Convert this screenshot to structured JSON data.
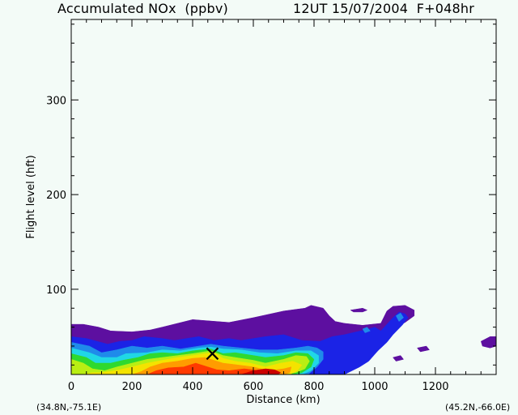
{
  "header": {
    "title_left": "Accumulated NOx  (ppbv)",
    "title_right": "12UT 15/07/2004  F+048hr"
  },
  "footer": {
    "start_coord": "(34.8N,-75.1E)",
    "end_coord": "(45.2N,-66.0E)"
  },
  "colors": {
    "background": "#f3fbf7",
    "levels": [
      "#5d0fa0",
      "#1b23e6",
      "#1f8bea",
      "#20d7e6",
      "#2fd92f",
      "#b9ee13",
      "#f4e300",
      "#ff9c00",
      "#ff3a00",
      "#cc0000"
    ]
  },
  "chart_data": {
    "type": "contour",
    "title": "Accumulated NOx  (ppbv)",
    "xlabel": "Distance  (km)",
    "ylabel": "Flight level  (hft)",
    "xlim": [
      0,
      1400
    ],
    "ylim": [
      10,
      385
    ],
    "xticks": [
      0,
      200,
      400,
      600,
      800,
      1000,
      1200
    ],
    "yticks": [
      100,
      200,
      300
    ],
    "marker": {
      "symbol": "x",
      "x": 465,
      "y": 32
    },
    "contour_levels": [
      {
        "level": 1,
        "polygons": [
          [
            [
              0,
              63
            ],
            [
              40,
              63
            ],
            [
              90,
              60
            ],
            [
              130,
              56
            ],
            [
              200,
              55
            ],
            [
              260,
              57
            ],
            [
              300,
              60
            ],
            [
              400,
              68
            ],
            [
              520,
              65
            ],
            [
              600,
              70
            ],
            [
              700,
              77
            ],
            [
              770,
              80
            ],
            [
              790,
              83
            ],
            [
              830,
              80
            ],
            [
              850,
              72
            ],
            [
              870,
              66
            ],
            [
              900,
              64
            ],
            [
              960,
              62
            ],
            [
              1020,
              64
            ],
            [
              1040,
              77
            ],
            [
              1060,
              82
            ],
            [
              1100,
              83
            ],
            [
              1130,
              78
            ],
            [
              1130,
              72
            ],
            [
              1100,
              65
            ],
            [
              1080,
              62
            ],
            [
              1060,
              55
            ],
            [
              1040,
              46
            ],
            [
              1010,
              35
            ],
            [
              980,
              26
            ],
            [
              950,
              20
            ],
            [
              920,
              18
            ],
            [
              880,
              10
            ],
            [
              0,
              10
            ]
          ],
          [
            [
              920,
              78
            ],
            [
              960,
              80
            ],
            [
              975,
              78
            ],
            [
              960,
              76
            ],
            [
              930,
              76
            ]
          ],
          [
            [
              1350,
              45
            ],
            [
              1380,
              50
            ],
            [
              1400,
              50
            ],
            [
              1400,
              40
            ],
            [
              1380,
              38
            ],
            [
              1355,
              40
            ]
          ],
          [
            [
              1140,
              38
            ],
            [
              1170,
              40
            ],
            [
              1180,
              36
            ],
            [
              1150,
              34
            ]
          ],
          [
            [
              1060,
              28
            ],
            [
              1085,
              30
            ],
            [
              1095,
              26
            ],
            [
              1070,
              24
            ]
          ]
        ]
      },
      {
        "level": 2,
        "polygons": [
          [
            [
              0,
              50
            ],
            [
              50,
              48
            ],
            [
              120,
              42
            ],
            [
              160,
              45
            ],
            [
              200,
              46
            ],
            [
              240,
              50
            ],
            [
              300,
              48
            ],
            [
              340,
              46
            ],
            [
              380,
              48
            ],
            [
              420,
              50
            ],
            [
              470,
              46
            ],
            [
              520,
              48
            ],
            [
              560,
              46
            ],
            [
              640,
              50
            ],
            [
              700,
              52
            ],
            [
              760,
              46
            ],
            [
              820,
              45
            ],
            [
              860,
              50
            ],
            [
              900,
              52
            ],
            [
              940,
              55
            ],
            [
              980,
              58
            ],
            [
              1000,
              60
            ],
            [
              1020,
              56
            ],
            [
              1060,
              70
            ],
            [
              1080,
              76
            ],
            [
              1100,
              74
            ],
            [
              1110,
              70
            ],
            [
              1090,
              62
            ],
            [
              1060,
              52
            ],
            [
              1040,
              44
            ],
            [
              1010,
              35
            ],
            [
              980,
              24
            ],
            [
              950,
              18
            ],
            [
              900,
              10
            ],
            [
              0,
              10
            ]
          ]
        ]
      },
      {
        "level": 3,
        "polygons": [
          [
            [
              0,
              44
            ],
            [
              60,
              40
            ],
            [
              100,
              33
            ],
            [
              150,
              36
            ],
            [
              200,
              40
            ],
            [
              250,
              38
            ],
            [
              300,
              40
            ],
            [
              360,
              37
            ],
            [
              420,
              40
            ],
            [
              460,
              42
            ],
            [
              500,
              40
            ],
            [
              560,
              38
            ],
            [
              620,
              36
            ],
            [
              680,
              36
            ],
            [
              740,
              38
            ],
            [
              780,
              40
            ],
            [
              810,
              38
            ],
            [
              830,
              34
            ],
            [
              830,
              26
            ],
            [
              810,
              18
            ],
            [
              780,
              10
            ],
            [
              0,
              10
            ]
          ],
          [
            [
              1070,
              72
            ],
            [
              1085,
              75
            ],
            [
              1095,
              70
            ],
            [
              1080,
              66
            ]
          ],
          [
            [
              960,
              58
            ],
            [
              975,
              60
            ],
            [
              985,
              56
            ],
            [
              968,
              54
            ]
          ]
        ]
      },
      {
        "level": 4,
        "polygons": [
          [
            [
              0,
              38
            ],
            [
              60,
              33
            ],
            [
              100,
              28
            ],
            [
              150,
              28
            ],
            [
              180,
              32
            ],
            [
              250,
              33
            ],
            [
              300,
              36
            ],
            [
              360,
              35
            ],
            [
              420,
              38
            ],
            [
              460,
              39
            ],
            [
              500,
              37
            ],
            [
              560,
              36
            ],
            [
              620,
              33
            ],
            [
              680,
              32
            ],
            [
              740,
              35
            ],
            [
              790,
              35
            ],
            [
              815,
              30
            ],
            [
              815,
              22
            ],
            [
              790,
              14
            ],
            [
              760,
              10
            ],
            [
              0,
              10
            ]
          ]
        ]
      },
      {
        "level": 5,
        "polygons": [
          [
            [
              0,
              32
            ],
            [
              50,
              28
            ],
            [
              80,
              22
            ],
            [
              130,
              22
            ],
            [
              170,
              25
            ],
            [
              220,
              28
            ],
            [
              260,
              32
            ],
            [
              300,
              33
            ],
            [
              350,
              32
            ],
            [
              400,
              35
            ],
            [
              460,
              37
            ],
            [
              500,
              32
            ],
            [
              540,
              33
            ],
            [
              600,
              30
            ],
            [
              640,
              28
            ],
            [
              700,
              30
            ],
            [
              740,
              33
            ],
            [
              780,
              32
            ],
            [
              800,
              26
            ],
            [
              790,
              18
            ],
            [
              760,
              12
            ],
            [
              730,
              10
            ],
            [
              0,
              10
            ]
          ]
        ]
      },
      {
        "level": 6,
        "polygons": [
          [
            [
              0,
              26
            ],
            [
              40,
              22
            ],
            [
              70,
              16
            ],
            [
              110,
              14
            ],
            [
              150,
              18
            ],
            [
              200,
              22
            ],
            [
              250,
              26
            ],
            [
              300,
              28
            ],
            [
              350,
              30
            ],
            [
              400,
              32
            ],
            [
              460,
              35
            ],
            [
              500,
              30
            ],
            [
              540,
              28
            ],
            [
              600,
              25
            ],
            [
              640,
              22
            ],
            [
              700,
              26
            ],
            [
              740,
              30
            ],
            [
              775,
              29
            ],
            [
              785,
              24
            ],
            [
              770,
              16
            ],
            [
              740,
              12
            ],
            [
              700,
              10
            ],
            [
              0,
              10
            ]
          ]
        ]
      },
      {
        "level": 7,
        "polygons": [
          [
            [
              40,
              10
            ],
            [
              70,
              12
            ],
            [
              100,
              12
            ],
            [
              160,
              15
            ],
            [
              200,
              18
            ],
            [
              250,
              22
            ],
            [
              300,
              25
            ],
            [
              350,
              28
            ],
            [
              400,
              30
            ],
            [
              440,
              32
            ],
            [
              470,
              33
            ],
            [
              500,
              27
            ],
            [
              540,
              24
            ],
            [
              590,
              22
            ],
            [
              640,
              18
            ],
            [
              690,
              22
            ],
            [
              730,
              24
            ],
            [
              760,
              20
            ],
            [
              745,
              14
            ],
            [
              720,
              10
            ]
          ]
        ]
      },
      {
        "level": 8,
        "polygons": [
          [
            [
              200,
              10
            ],
            [
              230,
              13
            ],
            [
              260,
              18
            ],
            [
              300,
              22
            ],
            [
              350,
              24
            ],
            [
              400,
              27
            ],
            [
              440,
              28
            ],
            [
              470,
              25
            ],
            [
              500,
              22
            ],
            [
              550,
              20
            ],
            [
              600,
              18
            ],
            [
              650,
              14
            ],
            [
              700,
              16
            ],
            [
              725,
              18
            ],
            [
              720,
              12
            ],
            [
              700,
              10
            ]
          ]
        ]
      },
      {
        "level": 9,
        "polygons": [
          [
            [
              250,
              10
            ],
            [
              280,
              14
            ],
            [
              320,
              17
            ],
            [
              370,
              18
            ],
            [
              410,
              22
            ],
            [
              450,
              18
            ],
            [
              480,
              15
            ],
            [
              520,
              14
            ],
            [
              570,
              16
            ],
            [
              620,
              14
            ],
            [
              660,
              10
            ]
          ]
        ]
      },
      {
        "level": 10,
        "polygons": [
          [
            [
              560,
              10
            ],
            [
              600,
              14
            ],
            [
              640,
              16
            ],
            [
              670,
              15
            ],
            [
              690,
              12
            ],
            [
              680,
              10
            ]
          ]
        ]
      }
    ]
  }
}
